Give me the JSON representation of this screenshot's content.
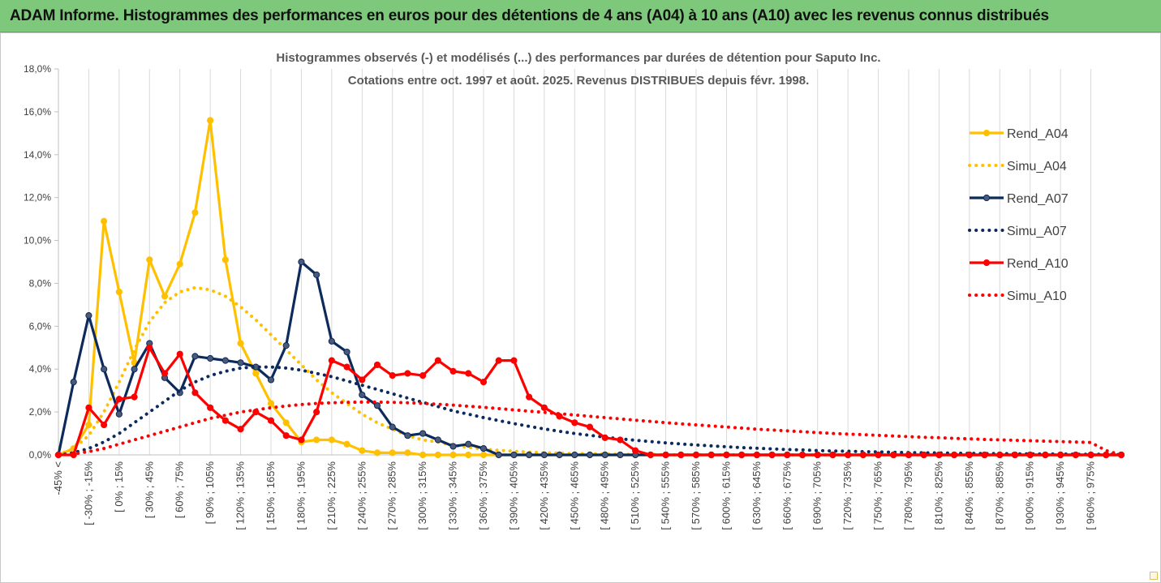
{
  "header": {
    "title": "ADAM Informe. Histogrammes des performances en euros pour des détentions de 4 ans (A04) à 10 ans (A10) avec les revenus connus distribués"
  },
  "chart_data": {
    "type": "line",
    "title": "Histogrammes observés (-) et modélisés (...) des performances par durées de détention pour Saputo Inc.",
    "subtitle": "Cotations entre oct. 1997 et août. 2025. Revenus DISTRIBUES depuis févr. 1998.",
    "xlabel": "",
    "ylabel": "",
    "ylim": [
      0,
      18
    ],
    "yticks": [
      "0,0%",
      "2,0%",
      "4,0%",
      "6,0%",
      "8,0%",
      "10,0%",
      "12,0%",
      "14,0%",
      "16,0%",
      "18,0%"
    ],
    "x_tick_labels": [
      "-45% <",
      "[ -30% ; -15%",
      "[ 0% ; 15%",
      "[ 30% ; 45%",
      "[ 60% ; 75%",
      "[ 90% ; 105%",
      "[ 120% ; 135%",
      "[ 150% ; 165%",
      "[ 180% ; 195%",
      "[ 210% ; 225%",
      "[ 240% ; 255%",
      "[ 270% ; 285%",
      "[ 300% ; 315%",
      "[ 330% ; 345%",
      "[ 360% ; 375%",
      "[ 390% ; 405%",
      "[ 420% ; 435%",
      "[ 450% ; 465%",
      "[ 480% ; 495%",
      "[ 510% ; 525%",
      "[ 540% ; 555%",
      "[ 570% ; 585%",
      "[ 600% ; 615%",
      "[ 630% ; 645%",
      "[ 660% ; 675%",
      "[ 690% ; 705%",
      "[ 720% ; 735%",
      "[ 750% ; 765%",
      "[ 780% ; 795%",
      "[ 810% ; 825%",
      "[ 840% ; 855%",
      "[ 870% ; 885%",
      "[ 900% ; 915%",
      "[ 930% ; 945%",
      "[ 960% ; 975%"
    ],
    "legend_position": "right",
    "grid": "vertical",
    "series": [
      {
        "name": "Rend_A04",
        "style": "solid-markers",
        "color": "#ffc000",
        "values": [
          0.0,
          0.3,
          1.4,
          10.9,
          7.6,
          4.3,
          9.1,
          7.4,
          8.9,
          11.3,
          15.6,
          9.1,
          5.2,
          3.8,
          2.4,
          1.5,
          0.6,
          0.7,
          0.7,
          0.5,
          0.2,
          0.1,
          0.1,
          0.1,
          0.0,
          0.0,
          0.0,
          0.0,
          0.0,
          0.0,
          0.0,
          0.0,
          0.0,
          0.0,
          0.0,
          0.0,
          0.0,
          0.0,
          0.0,
          0.0,
          0.0,
          0.0,
          0.0,
          0.0,
          0.0,
          0.0,
          0.0,
          0.0,
          0.0,
          0.0,
          0.0,
          0.0,
          0.0,
          0.0,
          0.0,
          0.0,
          0.0,
          0.0,
          0.0,
          0.0,
          0.0,
          0.0,
          0.0,
          0.0,
          0.0,
          0.0,
          0.0,
          0.0,
          0.0,
          0.0,
          0.0
        ]
      },
      {
        "name": "Simu_A04",
        "style": "dotted",
        "color": "#ffc000",
        "values": [
          0.0,
          0.3,
          0.9,
          2.0,
          3.4,
          4.9,
          6.2,
          7.1,
          7.6,
          7.8,
          7.7,
          7.4,
          6.9,
          6.3,
          5.6,
          4.9,
          4.2,
          3.5,
          2.9,
          2.4,
          1.9,
          1.5,
          1.2,
          0.9,
          0.7,
          0.6,
          0.45,
          0.35,
          0.27,
          0.21,
          0.17,
          0.13,
          0.1,
          0.08,
          0.06,
          0.05,
          0.04,
          0.03,
          0.02,
          0.02,
          0.01,
          0.01,
          0.01,
          0.01,
          0.0,
          0.0,
          0.0,
          0.0,
          0.0,
          0.0,
          0.0,
          0.0,
          0.0,
          0.0,
          0.0,
          0.0,
          0.0,
          0.0,
          0.0,
          0.0,
          0.0,
          0.0,
          0.0,
          0.0,
          0.0,
          0.0,
          0.0,
          0.0,
          0.0,
          0.0,
          0.0
        ]
      },
      {
        "name": "Rend_A07",
        "style": "solid-markers",
        "color": "#0d2a5c",
        "values": [
          0.0,
          3.4,
          6.5,
          4.0,
          1.9,
          4.0,
          5.2,
          3.6,
          2.9,
          4.6,
          4.5,
          4.4,
          4.3,
          4.1,
          3.5,
          5.1,
          9.0,
          8.4,
          5.3,
          4.8,
          2.8,
          2.3,
          1.3,
          0.9,
          1.0,
          0.7,
          0.4,
          0.5,
          0.3,
          0.0,
          0.0,
          0.0,
          0.0,
          0.0,
          0.0,
          0.0,
          0.0,
          0.0,
          0.0,
          0.0,
          0.0,
          0.0,
          0.0,
          0.0,
          0.0,
          0.0,
          0.0,
          0.0,
          0.0,
          0.0,
          0.0,
          0.0,
          0.0,
          0.0,
          0.0,
          0.0,
          0.0,
          0.0,
          0.0,
          0.0,
          0.0,
          0.0,
          0.0,
          0.0,
          0.0,
          0.0,
          0.0,
          0.0,
          0.0,
          0.0,
          0.0
        ]
      },
      {
        "name": "Simu_A07",
        "style": "dotted",
        "color": "#0d2a5c",
        "values": [
          0.0,
          0.1,
          0.3,
          0.6,
          1.0,
          1.5,
          2.0,
          2.5,
          3.0,
          3.4,
          3.7,
          3.9,
          4.05,
          4.1,
          4.1,
          4.05,
          3.95,
          3.8,
          3.65,
          3.45,
          3.25,
          3.05,
          2.85,
          2.65,
          2.45,
          2.25,
          2.05,
          1.9,
          1.74,
          1.6,
          1.46,
          1.33,
          1.21,
          1.1,
          1.0,
          0.91,
          0.83,
          0.75,
          0.68,
          0.62,
          0.56,
          0.51,
          0.46,
          0.42,
          0.38,
          0.34,
          0.31,
          0.28,
          0.25,
          0.23,
          0.2,
          0.18,
          0.17,
          0.15,
          0.14,
          0.12,
          0.11,
          0.1,
          0.09,
          0.08,
          0.07,
          0.06,
          0.06,
          0.05,
          0.05,
          0.04,
          0.04,
          0.03,
          0.03,
          0.03,
          0.02
        ]
      },
      {
        "name": "Rend_A10",
        "style": "solid-markers",
        "color": "#ff0000",
        "values": [
          0.0,
          0.0,
          2.2,
          1.4,
          2.6,
          2.7,
          5.0,
          3.8,
          4.7,
          2.9,
          2.2,
          1.6,
          1.2,
          2.0,
          1.6,
          0.9,
          0.7,
          2.0,
          4.4,
          4.1,
          3.5,
          4.2,
          3.7,
          3.8,
          3.7,
          4.4,
          3.9,
          3.8,
          3.4,
          4.4,
          4.4,
          2.7,
          2.2,
          1.8,
          1.5,
          1.3,
          0.8,
          0.7,
          0.2,
          0.0,
          0.0,
          0.0,
          0.0,
          0.0,
          0.0,
          0.0,
          0.0,
          0.0,
          0.0,
          0.0,
          0.0,
          0.0,
          0.0,
          0.0,
          0.0,
          0.0,
          0.0,
          0.0,
          0.0,
          0.0,
          0.0,
          0.0,
          0.0,
          0.0,
          0.0,
          0.0,
          0.0,
          0.0,
          0.0,
          0.0,
          0.0
        ]
      },
      {
        "name": "Simu_A10",
        "style": "dotted",
        "color": "#ff0000",
        "values": [
          0.0,
          0.05,
          0.15,
          0.3,
          0.5,
          0.7,
          0.9,
          1.1,
          1.3,
          1.5,
          1.7,
          1.85,
          2.0,
          2.1,
          2.2,
          2.28,
          2.35,
          2.4,
          2.43,
          2.45,
          2.46,
          2.46,
          2.45,
          2.43,
          2.4,
          2.36,
          2.32,
          2.27,
          2.22,
          2.16,
          2.1,
          2.04,
          1.98,
          1.92,
          1.86,
          1.8,
          1.74,
          1.68,
          1.62,
          1.56,
          1.5,
          1.45,
          1.4,
          1.35,
          1.3,
          1.25,
          1.2,
          1.16,
          1.12,
          1.08,
          1.04,
          1.0,
          0.97,
          0.94,
          0.91,
          0.88,
          0.85,
          0.82,
          0.8,
          0.77,
          0.75,
          0.72,
          0.7,
          0.68,
          0.66,
          0.64,
          0.62,
          0.6,
          0.58,
          0.2,
          0.0
        ]
      }
    ]
  }
}
